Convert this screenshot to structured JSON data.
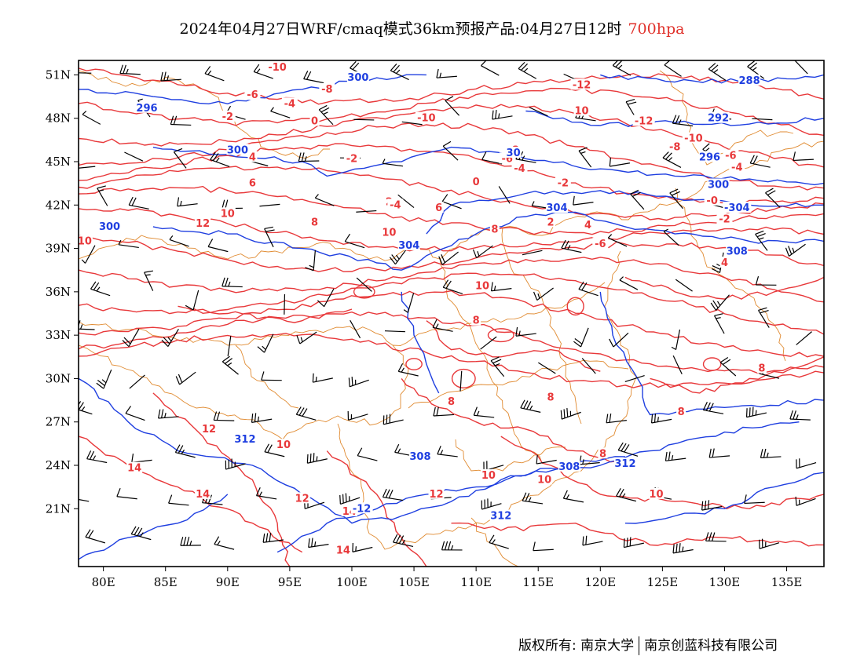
{
  "title": {
    "main": "2024年04月27日WRF/cmaq模式36km预报产品:04月27日12时",
    "level": "700hpa"
  },
  "colors": {
    "temperature": "#e8383a",
    "geopotential": "#1f3fe0",
    "border": "#e08a30",
    "wind": "#000000",
    "frame": "#000000"
  },
  "map": {
    "lon_range": [
      78,
      138
    ],
    "lat_range": [
      17,
      52
    ],
    "lon_ticks": [
      "80E",
      "85E",
      "90E",
      "95E",
      "100E",
      "105E",
      "110E",
      "115E",
      "120E",
      "125E",
      "130E",
      "135E"
    ],
    "lat_ticks": [
      "51N",
      "48N",
      "45N",
      "42N",
      "39N",
      "36N",
      "33N",
      "30N",
      "27N",
      "24N",
      "21N"
    ],
    "temperature_labels": [
      "-10",
      "-8",
      "-6",
      "-4",
      "-2",
      "0",
      "2",
      "4",
      "6",
      "8",
      "10",
      "12",
      "14",
      "-12"
    ],
    "geopotential_labels": [
      "288",
      "292",
      "296",
      "300",
      "304",
      "308",
      "312"
    ]
  },
  "footer": {
    "copyright": "版权所有: 南京大学",
    "company": "南京创蓝科技有限公司"
  }
}
